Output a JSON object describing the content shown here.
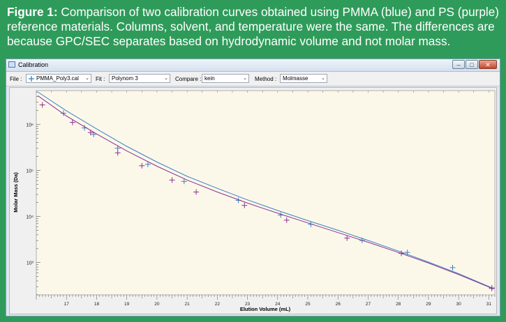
{
  "caption": {
    "label": "Figure 1:",
    "text": "Comparison of two calibration curves obtained using PMMA (blue) and PS (purple) reference materials. Columns, solvent, and temperature were the same. The differences are because GPC/SEC separates based on hydrodynamic volume and not molar mass."
  },
  "window": {
    "title": "Calibration",
    "buttons": {
      "minimize": "–",
      "maximize": "□",
      "close": "✕"
    }
  },
  "toolbar": {
    "file_label": "File :",
    "file_icon": "plus-icon",
    "file_value": "PMMA_Poly3.cal",
    "fit_label": "Fit :",
    "fit_value": "Polynom 3",
    "compare_label": "Compare :",
    "compare_value": "kein",
    "method_label": "Method :",
    "method_value": "Molmasse",
    "arrow": "⌄"
  },
  "colors": {
    "pmma": "#3b7fc4",
    "ps": "#8e2f8e",
    "plot_bg": "#fbf8ea"
  },
  "chart_data": {
    "type": "line",
    "xlabel": "Elution Volume (mL)",
    "ylabel": "Molar Mass (Da)",
    "xlim": [
      16.0,
      31.2
    ],
    "ylim_log10": [
      2.3,
      6.73
    ],
    "x_ticks": [
      17,
      18,
      19,
      20,
      21,
      22,
      23,
      24,
      25,
      26,
      27,
      28,
      29,
      30,
      31
    ],
    "x_tick_labels": [
      "17",
      "18",
      "19",
      "20",
      "21",
      "22",
      "23",
      "24",
      "25",
      "26",
      "27",
      "28",
      "29",
      "30",
      "31"
    ],
    "y_ticks_log10": [
      3,
      4,
      5,
      6
    ],
    "y_tick_labels": [
      "10³",
      "10⁴",
      "10⁵",
      "10⁶"
    ],
    "series": [
      {
        "name": "PMMA",
        "color": "#3b7fc4",
        "curve_x": [
          16.05,
          17,
          18,
          19,
          20,
          21,
          22,
          23,
          24,
          25,
          26,
          27,
          28,
          29,
          30,
          31,
          31.15
        ],
        "curve_log10_y": [
          6.7,
          6.29,
          5.9,
          5.52,
          5.18,
          4.87,
          4.61,
          4.36,
          4.13,
          3.91,
          3.7,
          3.48,
          3.25,
          3.01,
          2.76,
          2.48,
          2.43
        ],
        "points_x": [
          16.9,
          17.6,
          17.9,
          18.7,
          19.7,
          20.9,
          22.7,
          24.1,
          25.1,
          26.8,
          28.3,
          29.8,
          31.1
        ],
        "points_log10_y": [
          6.24,
          5.92,
          5.78,
          5.48,
          5.13,
          4.76,
          4.35,
          4.03,
          3.83,
          3.48,
          3.22,
          2.89,
          2.45
        ]
      },
      {
        "name": "PS",
        "color": "#8e2f8e",
        "curve_x": [
          16.05,
          17,
          18,
          19,
          20,
          21,
          22,
          23,
          24,
          25,
          26,
          27,
          28,
          29,
          30,
          31,
          31.15
        ],
        "curve_log10_y": [
          6.62,
          6.18,
          5.79,
          5.42,
          5.09,
          4.79,
          4.53,
          4.29,
          4.07,
          3.86,
          3.65,
          3.44,
          3.22,
          2.99,
          2.74,
          2.47,
          2.43
        ],
        "points_x": [
          16.2,
          17.2,
          17.8,
          18.7,
          19.5,
          20.5,
          21.3,
          22.9,
          24.3,
          26.3,
          28.1,
          31.1
        ],
        "points_log10_y": [
          6.42,
          6.04,
          5.82,
          5.38,
          5.1,
          4.79,
          4.53,
          4.24,
          3.92,
          3.53,
          3.2,
          2.44
        ]
      }
    ]
  }
}
